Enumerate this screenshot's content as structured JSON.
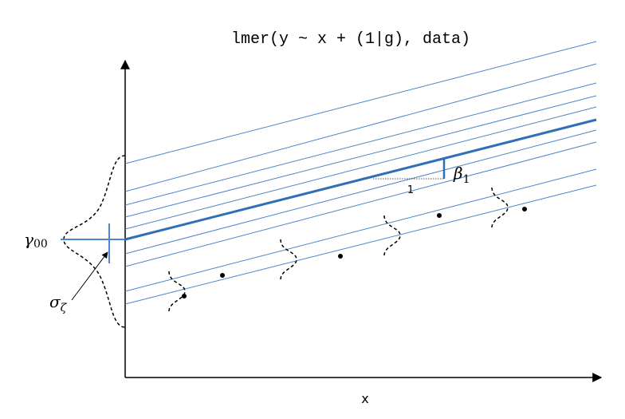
{
  "title": "lmer(y ~ x + (1|g), data)",
  "x_axis_label": "x",
  "labels": {
    "intercept": {
      "symbol": "γ",
      "subscript": "00"
    },
    "sd": {
      "symbol": "σ",
      "subscript": "ζ"
    },
    "slope": {
      "symbol": "β",
      "subscript": "1"
    },
    "run": "1"
  }
}
